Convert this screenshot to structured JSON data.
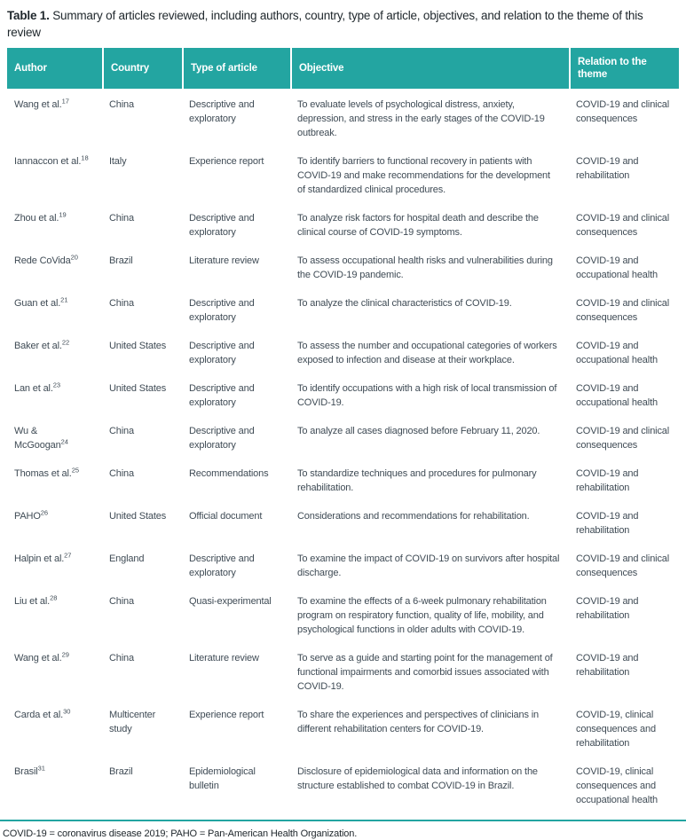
{
  "colors": {
    "accent_teal": "#23a5a1",
    "header_text": "#ffffff",
    "body_text": "#3f4b55"
  },
  "table": {
    "title_label": "Table 1.",
    "title_text": " Summary of articles reviewed, including authors, country, type of article, objectives, and relation to the theme of this review",
    "columns": [
      "Author",
      "Country",
      "Type of article",
      "Objective",
      "Relation to the theme"
    ],
    "rows": [
      {
        "author": "Wang et al.",
        "ref": "17",
        "country": "China",
        "type": "Descriptive and exploratory",
        "objective": "To evaluate levels of psychological distress, anxiety, depression, and stress in the early stages of the COVID-19 outbreak.",
        "relation": "COVID-19 and clinical consequences"
      },
      {
        "author": "Iannaccon et al.",
        "ref": "18",
        "country": "Italy",
        "type": "Experience report",
        "objective": "To identify barriers to functional recovery in patients with COVID-19 and make recommendations for the development of standardized clinical procedures.",
        "relation": "COVID-19 and rehabilitation"
      },
      {
        "author": "Zhou et al.",
        "ref": "19",
        "country": "China",
        "type": "Descriptive and exploratory",
        "objective": "To analyze risk factors for hospital death and describe the clinical course of COVID-19 symptoms.",
        "relation": "COVID-19 and clinical consequences"
      },
      {
        "author": "Rede CoVida",
        "ref": "20",
        "country": "Brazil",
        "type": "Literature review",
        "objective": "To assess occupational health risks and vulnerabilities during the COVID-19 pandemic.",
        "relation": "COVID-19 and occupational health"
      },
      {
        "author": "Guan et al.",
        "ref": "21",
        "country": "China",
        "type": "Descriptive and exploratory",
        "objective": "To analyze the clinical characteristics of COVID-19.",
        "relation": "COVID-19 and clinical consequences"
      },
      {
        "author": "Baker et al.",
        "ref": "22",
        "country": "United States",
        "type": "Descriptive and exploratory",
        "objective": "To assess the number and occupational categories of workers exposed to infection and disease at their workplace.",
        "relation": "COVID-19 and occupational health"
      },
      {
        "author": "Lan et al.",
        "ref": "23",
        "country": "United States",
        "type": "Descriptive and exploratory",
        "objective": "To identify occupations with a high risk of local transmission of COVID-19.",
        "relation": "COVID-19 and occupational health"
      },
      {
        "author": "Wu & McGoogan",
        "ref": "24",
        "country": "China",
        "type": "Descriptive and exploratory",
        "objective": "To analyze all cases diagnosed before February 11, 2020.",
        "relation": "COVID-19 and clinical consequences"
      },
      {
        "author": "Thomas et al.",
        "ref": "25",
        "country": "China",
        "type": "Recommendations",
        "objective": "To standardize techniques and procedures for pulmonary rehabilitation.",
        "relation": "COVID-19 and rehabilitation"
      },
      {
        "author": "PAHO",
        "ref": "26",
        "country": "United States",
        "type": "Official document",
        "objective": "Considerations and recommendations for rehabilitation.",
        "relation": "COVID-19 and rehabilitation"
      },
      {
        "author": "Halpin et al.",
        "ref": "27",
        "country": "England",
        "type": "Descriptive and exploratory",
        "objective": "To examine the impact of COVID-19 on survivors after hospital discharge.",
        "relation": "COVID-19 and clinical consequences"
      },
      {
        "author": "Liu et al.",
        "ref": "28",
        "country": "China",
        "type": "Quasi-experimental",
        "objective": "To examine the effects of a 6-week pulmonary rehabilitation program on respiratory function, quality of life, mobility, and psychological functions in older adults with COVID-19.",
        "relation": "COVID-19 and rehabilitation"
      },
      {
        "author": "Wang et al.",
        "ref": "29",
        "country": "China",
        "type": "Literature review",
        "objective": "To serve as a guide and starting point for the management of functional impairments and comorbid issues associated with COVID-19.",
        "relation": "COVID-19 and rehabilitation"
      },
      {
        "author": "Carda et al.",
        "ref": "30",
        "country": "Multicenter study",
        "type": "Experience report",
        "objective": "To share the experiences and perspectives of clinicians in different rehabilitation centers for COVID-19.",
        "relation": "COVID-19, clinical consequences and rehabilitation"
      },
      {
        "author": "Brasil",
        "ref": "31",
        "country": "Brazil",
        "type": "Epidemiological bulletin",
        "objective": "Disclosure of epidemiological data and information on the structure established to combat COVID-19 in Brazil.",
        "relation": "COVID-19, clinical consequences and occupational health"
      }
    ],
    "footnote": "COVID-19 = coronavirus disease 2019; PAHO = Pan-American Health Organization."
  }
}
